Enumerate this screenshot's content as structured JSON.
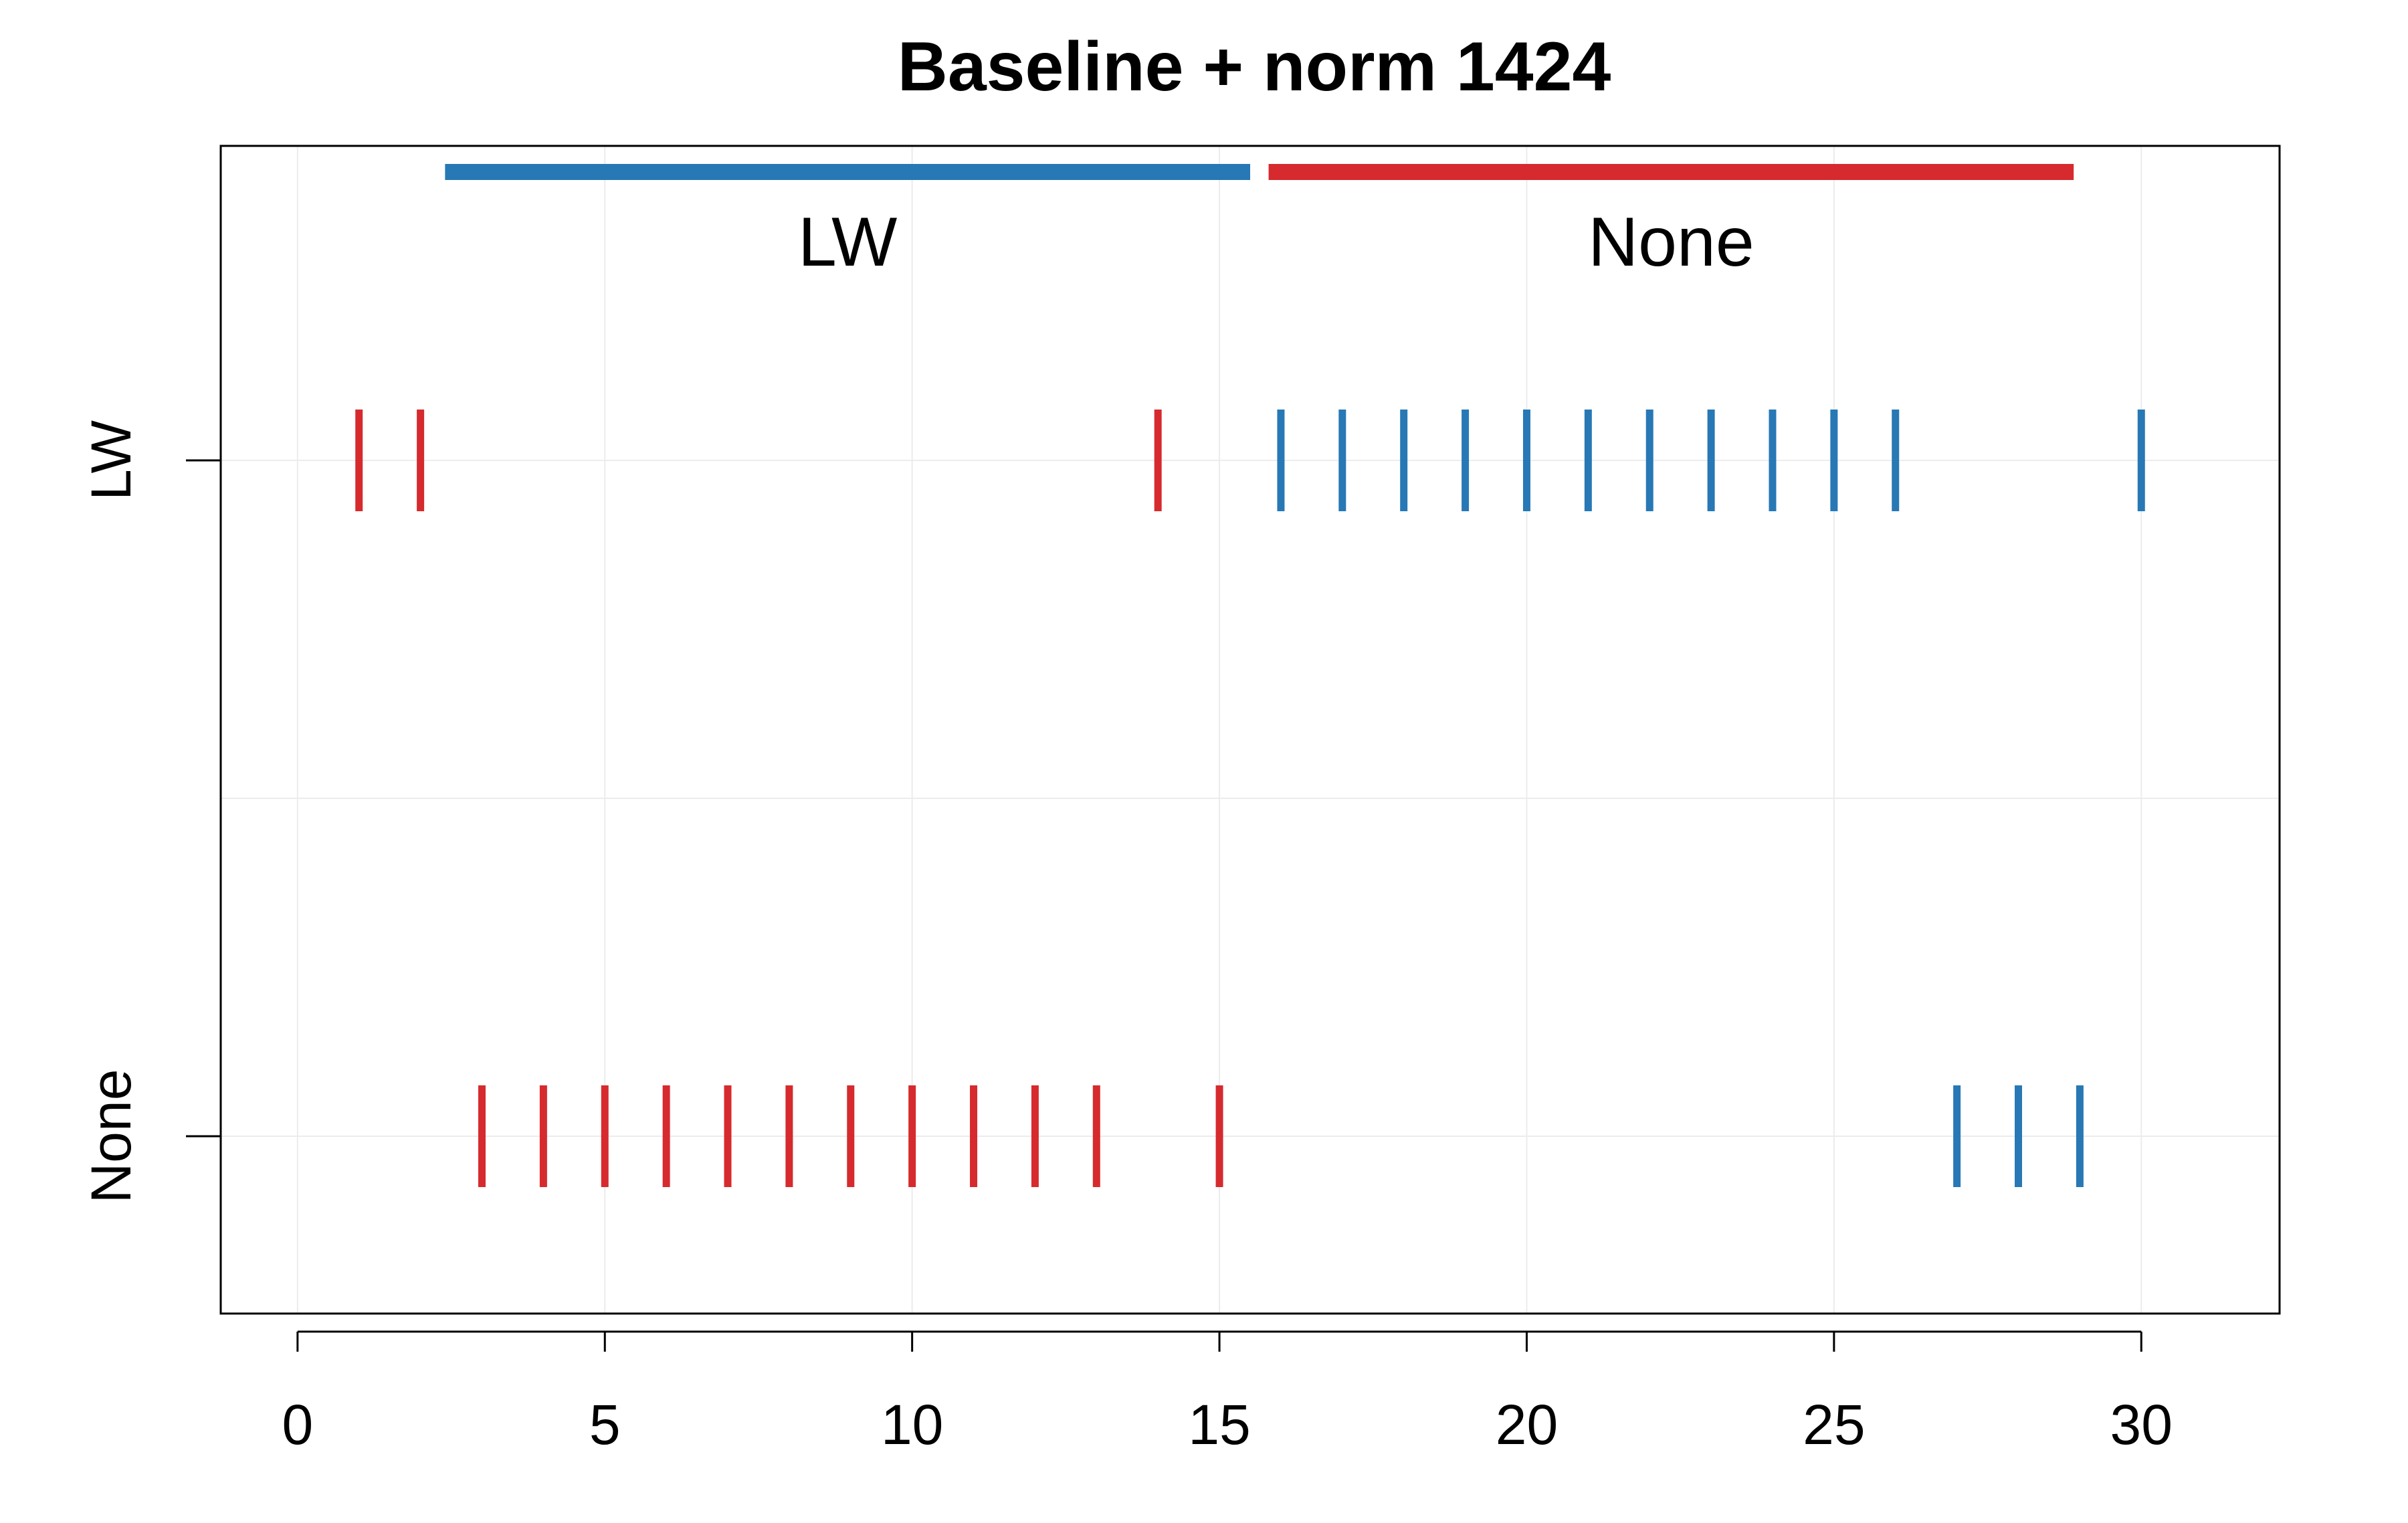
{
  "chart_data": {
    "type": "strip",
    "title": "Baseline + norm 1424",
    "xlabel": "",
    "ylabel": "",
    "xlim": [
      -1.25,
      32.25
    ],
    "x_ticks": [
      0,
      5,
      10,
      15,
      20,
      25,
      30
    ],
    "y_categories": [
      "LW",
      "None"
    ],
    "grid": true,
    "colors": {
      "LW": "#2778b5",
      "None": "#d62a2e"
    },
    "segments": [
      {
        "label": "LW",
        "start": 2.4,
        "end": 15.5
      },
      {
        "label": "None",
        "start": 15.8,
        "end": 28.9
      }
    ],
    "series": [
      {
        "row": "LW",
        "x": 1,
        "color_group": "None"
      },
      {
        "row": "LW",
        "x": 2,
        "color_group": "None"
      },
      {
        "row": "LW",
        "x": 14,
        "color_group": "None"
      },
      {
        "row": "LW",
        "x": 16,
        "color_group": "LW"
      },
      {
        "row": "LW",
        "x": 17,
        "color_group": "LW"
      },
      {
        "row": "LW",
        "x": 18,
        "color_group": "LW"
      },
      {
        "row": "LW",
        "x": 19,
        "color_group": "LW"
      },
      {
        "row": "LW",
        "x": 20,
        "color_group": "LW"
      },
      {
        "row": "LW",
        "x": 21,
        "color_group": "LW"
      },
      {
        "row": "LW",
        "x": 22,
        "color_group": "LW"
      },
      {
        "row": "LW",
        "x": 23,
        "color_group": "LW"
      },
      {
        "row": "LW",
        "x": 24,
        "color_group": "LW"
      },
      {
        "row": "LW",
        "x": 25,
        "color_group": "LW"
      },
      {
        "row": "LW",
        "x": 26,
        "color_group": "LW"
      },
      {
        "row": "LW",
        "x": 30,
        "color_group": "LW"
      },
      {
        "row": "None",
        "x": 3,
        "color_group": "None"
      },
      {
        "row": "None",
        "x": 4,
        "color_group": "None"
      },
      {
        "row": "None",
        "x": 5,
        "color_group": "None"
      },
      {
        "row": "None",
        "x": 6,
        "color_group": "None"
      },
      {
        "row": "None",
        "x": 7,
        "color_group": "None"
      },
      {
        "row": "None",
        "x": 8,
        "color_group": "None"
      },
      {
        "row": "None",
        "x": 9,
        "color_group": "None"
      },
      {
        "row": "None",
        "x": 10,
        "color_group": "None"
      },
      {
        "row": "None",
        "x": 11,
        "color_group": "None"
      },
      {
        "row": "None",
        "x": 12,
        "color_group": "None"
      },
      {
        "row": "None",
        "x": 13,
        "color_group": "None"
      },
      {
        "row": "None",
        "x": 15,
        "color_group": "None"
      },
      {
        "row": "None",
        "x": 27,
        "color_group": "LW"
      },
      {
        "row": "None",
        "x": 28,
        "color_group": "LW"
      },
      {
        "row": "None",
        "x": 29,
        "color_group": "LW"
      }
    ]
  }
}
